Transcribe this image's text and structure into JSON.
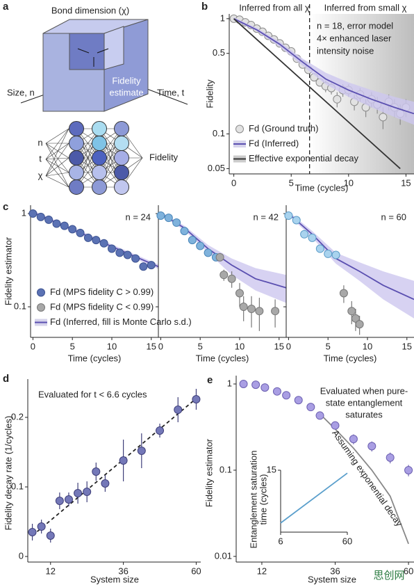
{
  "diagram": {
    "panel_label": "a",
    "top_label": "Bond dimension (χ)",
    "left_label": "Size, n",
    "right_label": "Time, t",
    "cube_label": [
      "Fidelity",
      "estimate"
    ],
    "inputs": [
      "n",
      "t",
      "χ"
    ],
    "output": "Fidelity"
  },
  "chart_data": [
    {
      "panel_label": "b",
      "type": "line",
      "log_y": true,
      "xlabel": "Time (cycles)",
      "ylabel": "Fidelity",
      "xlim": [
        -0.4,
        15.7
      ],
      "ylim": [
        0.045,
        1.1
      ],
      "xticks": [
        0,
        5,
        10,
        15
      ],
      "yticks": [
        0.05,
        0.1,
        0.5,
        1
      ],
      "vline": 6.6,
      "legend_loc": "lower left",
      "annotations": [
        "Inferred from all χ",
        "Inferred from small χ",
        "n = 18, error model",
        "4× enhanced laser",
        "intensity noise"
      ],
      "series": [
        {
          "name": "Fd (Ground truth)",
          "type": "scatter",
          "color": "#e2e2e2",
          "edgecolor": "#8a8a8a",
          "x": [
            0,
            0.5,
            1,
            1.5,
            2,
            2.5,
            3,
            3.5,
            4,
            4.5,
            5,
            5.5,
            6,
            6.5,
            7,
            7.5,
            8,
            8.5,
            9,
            9.5,
            10,
            10.5,
            11,
            11.5,
            12,
            12.5,
            13,
            13.5,
            14,
            14.5,
            15
          ],
          "values": [
            1.0,
            0.98,
            0.93,
            0.88,
            0.82,
            0.77,
            0.71,
            0.66,
            0.61,
            0.56,
            0.52,
            0.45,
            0.4,
            0.36,
            0.31,
            0.28,
            0.26,
            0.25,
            0.2,
            0.24,
            0.24,
            0.19,
            0.22,
            0.17,
            0.2,
            0.18,
            0.14,
            0.19,
            0.17,
            0.15,
            0.17
          ],
          "errors": [
            0.01,
            0.01,
            0.01,
            0.01,
            0.01,
            0.01,
            0.01,
            0.01,
            0.01,
            0.01,
            0.01,
            0.01,
            0.01,
            0.01,
            0.02,
            0.02,
            0.03,
            0.03,
            0.03,
            0.03,
            0.03,
            0.03,
            0.03,
            0.03,
            0.03,
            0.03,
            0.03,
            0.03,
            0.03,
            0.03,
            0.03
          ]
        },
        {
          "type": "band",
          "color": "#cdc7ef",
          "x": [
            0,
            2,
            4,
            6,
            8,
            10,
            12,
            14,
            15.7
          ],
          "lower": [
            0.97,
            0.78,
            0.57,
            0.39,
            0.27,
            0.21,
            0.17,
            0.14,
            0.12
          ],
          "upper": [
            1.03,
            0.83,
            0.63,
            0.45,
            0.34,
            0.28,
            0.24,
            0.21,
            0.19
          ]
        },
        {
          "name": "Fd (Inferred)",
          "type": "line",
          "color": "#5a4fb0",
          "x": [
            0,
            2,
            4,
            6,
            8,
            10,
            12,
            14,
            15.7
          ],
          "values": [
            1.0,
            0.8,
            0.6,
            0.42,
            0.3,
            0.24,
            0.2,
            0.17,
            0.15
          ]
        },
        {
          "name": "Effective exponential decay",
          "type": "line",
          "color": "#333333",
          "x": [
            0,
            14.5
          ],
          "values": [
            1,
            0.05
          ]
        }
      ]
    },
    {
      "panel_label": "c",
      "type": "line",
      "log_y": true,
      "xlabel": "Time (cycles)",
      "ylabel": "Fidelity estimator",
      "xlim": [
        -0.3,
        15.9
      ],
      "ylim": [
        0.047,
        1.23
      ],
      "xticks": [
        0,
        5,
        10,
        15
      ],
      "yticks": [
        0.1,
        1
      ],
      "legend_loc": "lower left",
      "legend": [
        {
          "name": "Fd (MPS fidelity C > 0.99)",
          "type": "scatter",
          "color": "#5b72b4",
          "edgecolor": "#3d5391"
        },
        {
          "name": "Fd (MPS fidelity C < 0.99)",
          "type": "scatter",
          "color": "#a8a8a8",
          "edgecolor": "#777777"
        },
        {
          "name": "Fd (Inferred, fill is Monte Carlo s.d.)",
          "type": "line",
          "color": "#5a4fb0"
        }
      ],
      "subplots": [
        {
          "annotation": "n = 24",
          "series": [
            {
              "type": "band",
              "color": "#cdc7ef",
              "x": [
                0,
                15.9
              ],
              "lower": [
                0.98,
                0.255
              ],
              "upper": [
                1.08,
                0.285
              ]
            },
            {
              "type": "line",
              "color": "#5a4fb0",
              "x": [
                0,
                15.9
              ],
              "values": [
                1.03,
                0.27
              ]
            },
            {
              "type": "scatter",
              "color": "#5b72b4",
              "edgecolor": "#3d5391",
              "x": [
                0,
                1,
                2,
                3,
                4,
                5,
                6,
                7,
                8,
                9,
                10,
                11,
                12,
                13,
                14,
                15
              ],
              "values": [
                1.0,
                0.92,
                0.86,
                0.78,
                0.74,
                0.68,
                0.62,
                0.55,
                0.52,
                0.48,
                0.42,
                0.38,
                0.36,
                0.33,
                0.27,
                0.28
              ]
            }
          ]
        },
        {
          "annotation": "n = 42",
          "series": [
            {
              "type": "band",
              "color": "#cdc7ef",
              "x": [
                0,
                3,
                6,
                9,
                12,
                15.9
              ],
              "lower": [
                0.97,
                0.66,
                0.38,
                0.22,
                0.15,
                0.11
              ],
              "upper": [
                1.05,
                0.74,
                0.46,
                0.33,
                0.26,
                0.22
              ]
            },
            {
              "type": "line",
              "color": "#5a4fb0",
              "x": [
                0,
                3,
                6,
                9,
                12,
                15.9
              ],
              "values": [
                1.0,
                0.7,
                0.42,
                0.28,
                0.2,
                0.16
              ]
            },
            {
              "type": "scatter",
              "color": "#7fb2dc",
              "edgecolor": "#4a86b8",
              "x": [
                0,
                1,
                2,
                3,
                4,
                5,
                6,
                7
              ],
              "values": [
                0.95,
                0.9,
                0.8,
                0.65,
                0.52,
                0.45,
                0.38,
                0.34
              ]
            },
            {
              "type": "scatter",
              "color": "#a8a8a8",
              "edgecolor": "#777777",
              "x": [
                7.5,
                8,
                9,
                10,
                10.5,
                11.5,
                12.5,
                14.5
              ],
              "values": [
                0.34,
                0.22,
                0.2,
                0.14,
                0.1,
                0.095,
                0.09,
                0.09
              ],
              "errors": [
                0.02,
                0.03,
                0.04,
                0.04,
                0.03,
                0.035,
                0.035,
                0.03
              ]
            }
          ]
        },
        {
          "annotation": "n = 60",
          "series": [
            {
              "type": "band",
              "color": "#cdc7ef",
              "x": [
                0,
                3,
                6,
                9,
                12,
                15.9
              ],
              "lower": [
                0.96,
                0.55,
                0.29,
                0.19,
                0.12,
                0.075
              ],
              "upper": [
                1.05,
                0.65,
                0.38,
                0.3,
                0.24,
                0.19
              ]
            },
            {
              "type": "line",
              "color": "#5a4fb0",
              "x": [
                0,
                3,
                6,
                9,
                12,
                15.9
              ],
              "values": [
                1.0,
                0.6,
                0.33,
                0.24,
                0.17,
                0.12
              ]
            },
            {
              "type": "scatter",
              "color": "#a9d3ee",
              "edgecolor": "#5c9cc8",
              "x": [
                0,
                1,
                2,
                3,
                4,
                5,
                6
              ],
              "values": [
                0.95,
                0.85,
                0.6,
                0.55,
                0.42,
                0.37,
                0.36
              ]
            },
            {
              "type": "scatter",
              "color": "#a8a8a8",
              "edgecolor": "#777777",
              "x": [
                7,
                8,
                8.5,
                9
              ],
              "values": [
                0.14,
                0.09,
                0.075,
                0.065
              ],
              "errors": [
                0.03,
                0.025,
                0.02,
                0.015
              ]
            }
          ]
        }
      ]
    },
    {
      "panel_label": "d",
      "type": "scatter",
      "xlabel": "System size",
      "ylabel": "Fidelity decay rate (1/cycles)",
      "xlim": [
        4.5,
        61.5
      ],
      "ylim": [
        -0.008,
        0.255
      ],
      "xticks": [
        12,
        36,
        60
      ],
      "yticks": [
        0,
        0.1,
        0.2
      ],
      "annotations": [
        "Evaluated for t < 6.6 cycles"
      ],
      "series": [
        {
          "type": "line",
          "dash": true,
          "color": "#222222",
          "x": [
            6,
            60
          ],
          "values": [
            0.03,
            0.227
          ]
        },
        {
          "type": "scatter",
          "color": "#7478b8",
          "edgecolor": "#3f3f7a",
          "x": [
            6,
            9,
            12,
            15,
            18,
            21,
            24,
            27,
            30,
            36,
            42,
            48,
            54,
            60
          ],
          "values": [
            0.035,
            0.043,
            0.03,
            0.08,
            0.082,
            0.091,
            0.093,
            0.122,
            0.105,
            0.138,
            0.152,
            0.181,
            0.211,
            0.226
          ],
          "errors": [
            0.012,
            0.01,
            0.01,
            0.012,
            0.01,
            0.015,
            0.015,
            0.013,
            0.012,
            0.03,
            0.025,
            0.01,
            0.018,
            0.015
          ]
        }
      ]
    },
    {
      "panel_label": "e",
      "type": "scatter",
      "log_y": true,
      "xlabel": "System size",
      "ylabel": "Fidelity estimator",
      "xlim": [
        3.6,
        61.8
      ],
      "ylim": [
        0.0086,
        1.25
      ],
      "xticks": [
        12,
        36,
        60
      ],
      "yticks": [
        0.01,
        0.1,
        1
      ],
      "annotations": [
        "Evaluated when pure-",
        "state entanglement",
        "saturates",
        "Assuming exponential decay"
      ],
      "series": [
        {
          "type": "line",
          "color": "#888888",
          "x": [
            31,
            36,
            42,
            48,
            54,
            60
          ],
          "values": [
            0.45,
            0.3,
            0.18,
            0.1,
            0.05,
            0.014
          ]
        },
        {
          "type": "scatter",
          "color": "#a99ee3",
          "edgecolor": "#6b5fb0",
          "x": [
            6,
            10,
            13,
            17,
            20,
            24,
            28,
            31,
            36,
            42,
            48,
            54,
            60
          ],
          "values": [
            1.0,
            0.98,
            0.91,
            0.82,
            0.74,
            0.65,
            0.54,
            0.43,
            0.33,
            0.23,
            0.19,
            0.14,
            0.1
          ],
          "errors": [
            0.01,
            0.01,
            0.01,
            0.01,
            0.01,
            0.01,
            0.01,
            0.015,
            0.03,
            0.03,
            0.025,
            0.02,
            0.015
          ]
        }
      ]
    },
    {
      "type": "line",
      "xlim": [
        6,
        60
      ],
      "ylim": [
        0,
        15
      ],
      "xticks": [
        6,
        60
      ],
      "yticks": [
        15
      ],
      "ylabel": [
        "Entanglement saturation",
        "time (cycles)"
      ],
      "series": [
        {
          "type": "line",
          "color": "#5a9fcc",
          "x": [
            6,
            60
          ],
          "values": [
            2.2,
            14.3
          ]
        }
      ]
    }
  ],
  "watermark": "思创网"
}
